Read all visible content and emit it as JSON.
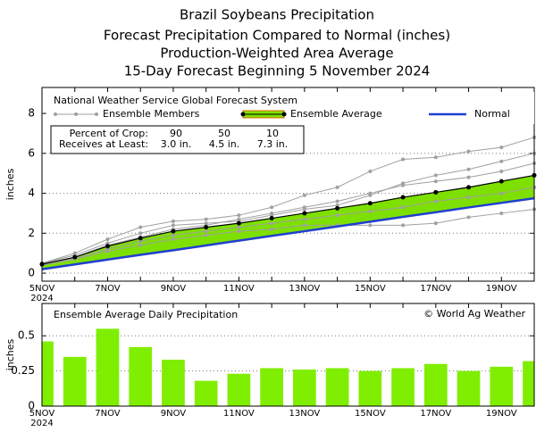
{
  "chart_data": [
    {
      "type": "line",
      "title": "Brazil Soybeans Precipitation",
      "subtitle": [
        "Forecast Precipitation Compared to Normal (inches)",
        "Production-Weighted Area Average",
        "15-Day Forecast Beginning 5 November 2024"
      ],
      "legend_title": "National Weather Service Global Forecast System",
      "crop_table": {
        "rows": [
          [
            "Percent of Crop:",
            "90",
            "50",
            "10"
          ],
          [
            "Receives at Least:",
            "3.0 in.",
            "4.5 in.",
            "7.3 in."
          ]
        ]
      },
      "y_label": "inches",
      "x_year": "2024",
      "categories": [
        "5NOV",
        null,
        "7NOV",
        null,
        "9NOV",
        null,
        "11NOV",
        null,
        "13NOV",
        null,
        "15NOV",
        null,
        "17NOV",
        null,
        "19NOV",
        null
      ],
      "ylim": [
        -0.4,
        9.3
      ],
      "yticks": [
        0,
        2,
        4,
        6,
        8
      ],
      "grid": true,
      "series": [
        {
          "name": "Ensemble Members",
          "color": "#a0a0a0",
          "values": [
            [
              0.5,
              1.0,
              1.7,
              2.3,
              2.6,
              2.7,
              2.9,
              3.3,
              3.9,
              4.3,
              5.1,
              5.7,
              5.8,
              6.1,
              6.3,
              6.8
            ],
            [
              0.4,
              0.7,
              1.1,
              1.4,
              1.7,
              1.9,
              2.1,
              2.2,
              2.4,
              2.4,
              2.4,
              2.4,
              2.5,
              2.8,
              3.0,
              3.2
            ],
            [
              0.45,
              0.8,
              1.4,
              1.8,
              2.2,
              2.4,
              2.7,
              3.0,
              3.3,
              3.6,
              4.0,
              4.4,
              4.6,
              4.8,
              5.1,
              5.5
            ],
            [
              0.4,
              0.75,
              1.2,
              1.6,
              1.9,
              2.1,
              2.3,
              2.5,
              2.7,
              2.9,
              3.1,
              3.3,
              3.6,
              3.8,
              4.0,
              4.3
            ],
            [
              0.5,
              0.9,
              1.5,
              2.0,
              2.4,
              2.5,
              2.6,
              2.9,
              3.2,
              3.4,
              3.9,
              4.5,
              4.9,
              5.2,
              5.6,
              6.0
            ]
          ]
        },
        {
          "name": "Ensemble Average",
          "color": "#000000",
          "fill": "#7ee000",
          "edge": "#e06a00",
          "values": [
            0.45,
            0.8,
            1.35,
            1.75,
            2.1,
            2.3,
            2.5,
            2.75,
            3.0,
            3.25,
            3.5,
            3.8,
            4.05,
            4.3,
            4.6,
            4.9
          ]
        },
        {
          "name": "Normal",
          "color": "#1f3fd0",
          "values": [
            0.2,
            0.44,
            0.68,
            0.92,
            1.15,
            1.39,
            1.63,
            1.87,
            2.1,
            2.34,
            2.58,
            2.82,
            3.05,
            3.29,
            3.52,
            3.75
          ]
        }
      ]
    },
    {
      "type": "bar",
      "title": "Ensemble Average Daily Precipitation",
      "credit": "© World Ag Weather",
      "y_label": "inches",
      "x_year": "2024",
      "categories": [
        "5NOV",
        null,
        "7NOV",
        null,
        "9NOV",
        null,
        "11NOV",
        null,
        "13NOV",
        null,
        "15NOV",
        null,
        "17NOV",
        null,
        "19NOV",
        null
      ],
      "values": [
        0.46,
        0.35,
        0.55,
        0.42,
        0.33,
        0.18,
        0.23,
        0.27,
        0.26,
        0.27,
        0.25,
        0.27,
        0.3,
        0.25,
        0.28,
        0.32
      ],
      "color": "#80ee00",
      "ylim": [
        0,
        0.73
      ],
      "yticks": [
        0,
        0.25,
        0.5
      ],
      "grid": true
    }
  ]
}
